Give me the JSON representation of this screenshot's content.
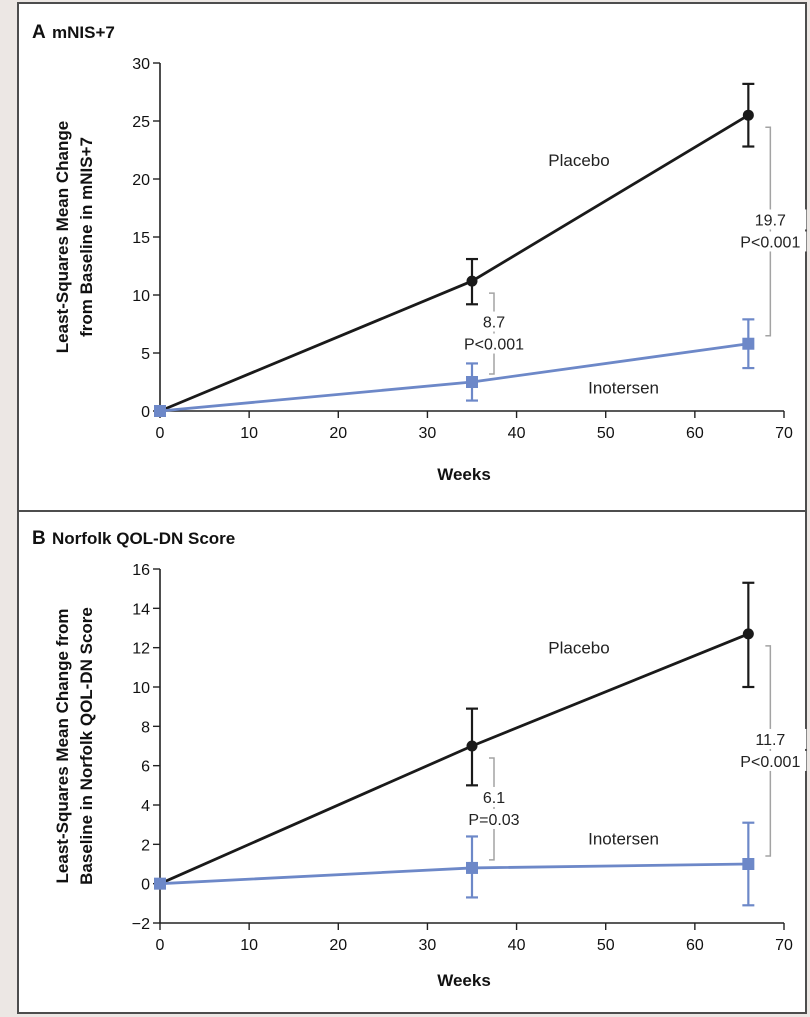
{
  "colors": {
    "placebo": "#1a1a1a",
    "inotersen": "#6d88c8",
    "frame": "#4d4d4d",
    "margin": "#ece7e4",
    "bracket": "#a3a3a3"
  },
  "chart_data": [
    {
      "type": "line",
      "panel_letter": "A",
      "title": "mNIS+7",
      "xlabel": "Weeks",
      "ylabel": [
        "Least-Squares Mean Change",
        "from Baseline in mNIS+7"
      ],
      "xlim": [
        0,
        70
      ],
      "ylim": [
        0,
        30
      ],
      "xticks": [
        0,
        10,
        20,
        30,
        40,
        50,
        60,
        70
      ],
      "yticks": [
        0,
        5,
        10,
        15,
        20,
        25,
        30
      ],
      "grid": false,
      "series": [
        {
          "name": "Placebo",
          "marker": "circle",
          "color": "#1a1a1a",
          "x": [
            0,
            35,
            66
          ],
          "y": [
            0,
            11.2,
            25.5
          ],
          "err_low": [
            null,
            9.2,
            22.8
          ],
          "err_high": [
            null,
            13.1,
            28.2
          ]
        },
        {
          "name": "Inotersen",
          "marker": "square",
          "color": "#6d88c8",
          "x": [
            0,
            35,
            66
          ],
          "y": [
            0,
            2.5,
            5.8
          ],
          "err_low": [
            null,
            0.9,
            3.7
          ],
          "err_high": [
            null,
            4.1,
            7.9
          ]
        }
      ],
      "annotations": [
        {
          "at_x": 35,
          "from_y": 2.5,
          "to_y": 11.2,
          "lines": [
            "8.7",
            "P<0.001"
          ],
          "side": "right"
        },
        {
          "at_x": 66,
          "from_y": 5.8,
          "to_y": 25.5,
          "lines": [
            "19.7",
            "P<0.001"
          ],
          "side": "right"
        }
      ],
      "series_labels": [
        {
          "text": "Placebo",
          "x": 47,
          "y": 21.1
        },
        {
          "text": "Inotersen",
          "x": 52,
          "y": 1.5
        }
      ]
    },
    {
      "type": "line",
      "panel_letter": "B",
      "title": "Norfolk QOL-DN Score",
      "xlabel": "Weeks",
      "ylabel": [
        "Least-Squares Mean Change from",
        "Baseline in Norfolk QOL-DN Score"
      ],
      "xlim": [
        0,
        70
      ],
      "ylim": [
        -2,
        16
      ],
      "xticks": [
        0,
        10,
        20,
        30,
        40,
        50,
        60,
        70
      ],
      "yticks": [
        -2,
        0,
        2,
        4,
        6,
        8,
        10,
        12,
        14,
        16
      ],
      "grid": false,
      "series": [
        {
          "name": "Placebo",
          "marker": "circle",
          "color": "#1a1a1a",
          "x": [
            0,
            35,
            66
          ],
          "y": [
            0,
            7.0,
            12.7
          ],
          "err_low": [
            null,
            5.0,
            10.0
          ],
          "err_high": [
            null,
            8.9,
            15.3
          ]
        },
        {
          "name": "Inotersen",
          "marker": "square",
          "color": "#6d88c8",
          "x": [
            0,
            35,
            66
          ],
          "y": [
            0,
            0.8,
            1.0
          ],
          "err_low": [
            null,
            -0.7,
            -1.1
          ],
          "err_high": [
            null,
            2.4,
            3.1
          ]
        }
      ],
      "annotations": [
        {
          "at_x": 35,
          "from_y": 0.8,
          "to_y": 7.0,
          "lines": [
            "6.1",
            "P=0.03"
          ],
          "side": "right"
        },
        {
          "at_x": 66,
          "from_y": 1.0,
          "to_y": 12.7,
          "lines": [
            "11.7",
            "P<0.001"
          ],
          "side": "right"
        }
      ],
      "series_labels": [
        {
          "text": "Placebo",
          "x": 47,
          "y": 11.7
        },
        {
          "text": "Inotersen",
          "x": 52,
          "y": 2.0
        }
      ]
    }
  ]
}
